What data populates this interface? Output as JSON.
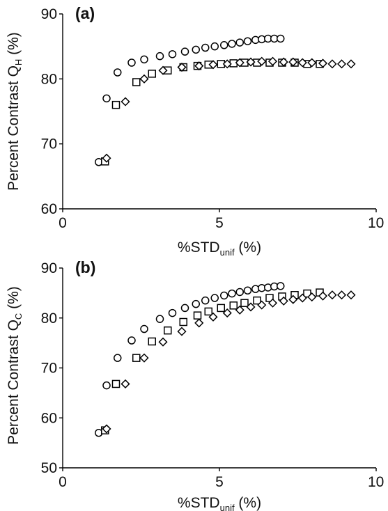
{
  "chart_data": [
    {
      "type": "scatter",
      "panel_label": "(a)",
      "xlabel": {
        "main": "%STD",
        "sub": "unif",
        "unit": " (%)"
      },
      "ylabel": {
        "main": "Percent Contrast Q",
        "sub": "H",
        "unit": " (%)"
      },
      "xlim": [
        0,
        10
      ],
      "ylim": [
        60,
        90
      ],
      "xticks": [
        0,
        5,
        10
      ],
      "yticks": [
        60,
        70,
        80,
        90
      ],
      "grid": false,
      "series": [
        {
          "marker": "circle",
          "x": [
            1.15,
            1.4,
            1.75,
            2.2,
            2.6,
            3.1,
            3.5,
            3.9,
            4.25,
            4.55,
            4.85,
            5.15,
            5.4,
            5.65,
            5.9,
            6.15,
            6.35,
            6.55,
            6.75,
            6.95
          ],
          "y": [
            67.2,
            77.0,
            81.0,
            82.5,
            83.0,
            83.5,
            83.8,
            84.2,
            84.5,
            84.8,
            85.0,
            85.2,
            85.4,
            85.6,
            85.8,
            86.0,
            86.1,
            86.2,
            86.2,
            86.2
          ]
        },
        {
          "marker": "square",
          "x": [
            1.35,
            1.7,
            2.35,
            2.85,
            3.35,
            3.85,
            4.3,
            4.65,
            5.05,
            5.45,
            5.8,
            6.2,
            6.6,
            7.0,
            7.4,
            7.8,
            8.2
          ],
          "y": [
            67.3,
            76.0,
            79.5,
            80.8,
            81.3,
            81.8,
            82.0,
            82.2,
            82.3,
            82.4,
            82.5,
            82.5,
            82.5,
            82.5,
            82.5,
            82.3,
            82.3
          ]
        },
        {
          "marker": "diamond",
          "x": [
            1.4,
            2.0,
            2.6,
            3.2,
            3.8,
            4.35,
            4.8,
            5.25,
            5.65,
            6.0,
            6.35,
            6.7,
            7.05,
            7.35,
            7.65,
            7.95,
            8.3,
            8.6,
            8.9,
            9.2
          ],
          "y": [
            67.8,
            76.5,
            80.0,
            81.3,
            81.8,
            82.0,
            82.2,
            82.3,
            82.5,
            82.6,
            82.7,
            82.7,
            82.6,
            82.6,
            82.5,
            82.5,
            82.4,
            82.3,
            82.3,
            82.3
          ]
        }
      ]
    },
    {
      "type": "scatter",
      "panel_label": "(b)",
      "xlabel": {
        "main": "%STD",
        "sub": "unif",
        "unit": " (%)"
      },
      "ylabel": {
        "main": "Percent Contrast Q",
        "sub": "C",
        "unit": " (%)"
      },
      "xlim": [
        0,
        10
      ],
      "ylim": [
        50,
        90
      ],
      "xticks": [
        0,
        5,
        10
      ],
      "yticks": [
        50,
        60,
        70,
        80,
        90
      ],
      "grid": false,
      "series": [
        {
          "marker": "circle",
          "x": [
            1.15,
            1.4,
            1.75,
            2.2,
            2.6,
            3.1,
            3.5,
            3.9,
            4.25,
            4.55,
            4.85,
            5.15,
            5.4,
            5.65,
            5.9,
            6.15,
            6.35,
            6.55,
            6.75,
            6.95
          ],
          "y": [
            57.0,
            66.5,
            72.0,
            75.5,
            77.8,
            79.8,
            81.0,
            82.0,
            82.8,
            83.5,
            84.0,
            84.5,
            84.9,
            85.2,
            85.5,
            85.8,
            86.0,
            86.1,
            86.3,
            86.4
          ]
        },
        {
          "marker": "square",
          "x": [
            1.35,
            1.7,
            2.35,
            2.85,
            3.35,
            3.85,
            4.3,
            4.65,
            5.05,
            5.45,
            5.8,
            6.2,
            6.6,
            7.0,
            7.4,
            7.8,
            8.2
          ],
          "y": [
            57.5,
            66.8,
            72.0,
            75.3,
            77.5,
            79.2,
            80.5,
            81.3,
            82.0,
            82.5,
            83.0,
            83.5,
            84.0,
            84.3,
            84.6,
            84.9,
            85.1
          ]
        },
        {
          "marker": "diamond",
          "x": [
            1.4,
            2.0,
            2.6,
            3.2,
            3.8,
            4.35,
            4.8,
            5.25,
            5.65,
            6.0,
            6.35,
            6.7,
            7.05,
            7.35,
            7.65,
            7.95,
            8.3,
            8.6,
            8.9,
            9.2
          ],
          "y": [
            57.8,
            66.8,
            72.0,
            75.2,
            77.3,
            79.0,
            80.2,
            81.0,
            81.6,
            82.2,
            82.6,
            83.0,
            83.4,
            83.7,
            84.0,
            84.2,
            84.4,
            84.6,
            84.6,
            84.6
          ]
        }
      ]
    }
  ]
}
